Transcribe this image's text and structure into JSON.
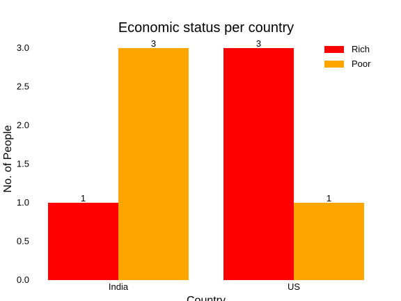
{
  "chart_data": {
    "type": "bar",
    "title": "Economic status per country",
    "xlabel": "Country",
    "ylabel": "No. of People",
    "categories": [
      "India",
      "US"
    ],
    "series": [
      {
        "name": "Rich",
        "values": [
          1,
          3
        ],
        "color": "#ff0000"
      },
      {
        "name": "Poor",
        "values": [
          3,
          1
        ],
        "color": "#ffa500"
      }
    ],
    "ylim": [
      0,
      3.0
    ],
    "yticks": [
      "0.0",
      "0.5",
      "1.0",
      "1.5",
      "2.0",
      "2.5",
      "3.0"
    ],
    "data_labels": [
      [
        "1",
        "3"
      ],
      [
        "3",
        "1"
      ]
    ],
    "grid": false,
    "legend_position": "top-right"
  }
}
